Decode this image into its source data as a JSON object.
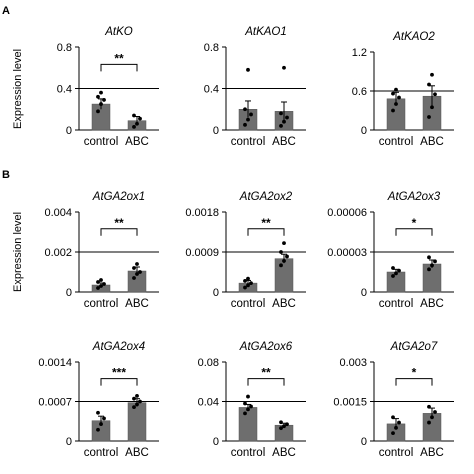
{
  "panel_labels": [
    "A",
    "B"
  ],
  "ylabel": "Expression level",
  "chart_data": [
    {
      "type": "bar",
      "title": "AtKO",
      "categories": [
        "control",
        "ABC"
      ],
      "values": [
        0.25,
        0.09
      ],
      "errors": [
        0.05,
        0.04
      ],
      "points": [
        [
          0.18,
          0.25,
          0.29,
          0.32,
          0.36
        ],
        [
          0.03,
          0.06,
          0.11,
          0.14
        ]
      ],
      "ylim": [
        0,
        0.8
      ],
      "yticks": [
        "0",
        "0.4",
        "0.8"
      ],
      "yticks_v": [
        0,
        0.4,
        0.8
      ],
      "refline": 0.4,
      "significance": "**"
    },
    {
      "type": "bar",
      "title": "AtKAO1",
      "categories": [
        "control",
        "ABC"
      ],
      "values": [
        0.2,
        0.18
      ],
      "errors": [
        0.08,
        0.09
      ],
      "points": [
        [
          0.05,
          0.1,
          0.15,
          0.2,
          0.58
        ],
        [
          0.04,
          0.08,
          0.12,
          0.16,
          0.6
        ]
      ],
      "ylim": [
        0,
        0.8
      ],
      "yticks": [
        "0",
        "0.4",
        "0.8"
      ],
      "yticks_v": [
        0,
        0.4,
        0.8
      ],
      "refline": 0.4,
      "significance": ""
    },
    {
      "type": "bar",
      "title": "AtKAO2",
      "categories": [
        "control",
        "ABC"
      ],
      "values": [
        0.48,
        0.52
      ],
      "errors": [
        0.1,
        0.16
      ],
      "points": [
        [
          0.3,
          0.4,
          0.5,
          0.56,
          0.62
        ],
        [
          0.2,
          0.35,
          0.55,
          0.7,
          0.85
        ]
      ],
      "ylim": [
        0,
        1.2
      ],
      "yticks": [
        "0",
        "0.6",
        "1.2"
      ],
      "yticks_v": [
        0,
        0.6,
        1.2
      ],
      "refline": 0.6,
      "significance": ""
    },
    {
      "type": "bar",
      "title": "AtGA2ox1",
      "categories": [
        "control",
        "ABC"
      ],
      "values": [
        0.00035,
        0.00105
      ],
      "errors": [
        0.0001,
        0.0002
      ],
      "points": [
        [
          0.0002,
          0.0003,
          0.0004,
          0.0005,
          0.0006
        ],
        [
          0.0007,
          0.0009,
          0.001,
          0.0012,
          0.0014
        ]
      ],
      "ylim": [
        0,
        0.004
      ],
      "yticks": [
        "0",
        "0.002",
        "0.004"
      ],
      "yticks_v": [
        0,
        0.002,
        0.004
      ],
      "refline": 0.002,
      "significance": "**"
    },
    {
      "type": "bar",
      "title": "AtGA2ox2",
      "categories": [
        "control",
        "ABC"
      ],
      "values": [
        0.0002,
        0.00075
      ],
      "errors": [
        6e-05,
        0.0001
      ],
      "points": [
        [
          0.0001,
          0.00015,
          0.0002,
          0.00025,
          0.0003
        ],
        [
          0.0006,
          0.0007,
          0.0008,
          0.0009,
          0.0011
        ]
      ],
      "ylim": [
        0,
        0.0018
      ],
      "yticks": [
        "0",
        "0.0009",
        "0.0018"
      ],
      "yticks_v": [
        0,
        0.0009,
        0.0018
      ],
      "refline": 0.0009,
      "significance": "**"
    },
    {
      "type": "bar",
      "title": "AtGA2ox3",
      "categories": [
        "control",
        "ABC"
      ],
      "values": [
        1.5e-05,
        2.1e-05
      ],
      "errors": [
        2e-06,
        3e-06
      ],
      "points": [
        [
          1.2e-05,
          1.4e-05,
          1.6e-05,
          1.8e-05
        ],
        [
          1.7e-05,
          2e-05,
          2.3e-05,
          2.6e-05
        ]
      ],
      "ylim": [
        0,
        6e-05
      ],
      "yticks": [
        "0",
        "0.00003",
        "0.00006"
      ],
      "yticks_v": [
        0,
        3e-05,
        6e-05
      ],
      "refline": 3e-05,
      "significance": "*"
    },
    {
      "type": "bar",
      "title": "AtGA2ox4",
      "categories": [
        "control",
        "ABC"
      ],
      "values": [
        0.00036,
        0.00068
      ],
      "errors": [
        8e-05,
        7e-05
      ],
      "points": [
        [
          0.0002,
          0.0003,
          0.0004,
          0.0005
        ],
        [
          0.0006,
          0.00065,
          0.0007,
          0.00075,
          0.0008
        ]
      ],
      "ylim": [
        0,
        0.0014
      ],
      "yticks": [
        "0",
        "0.0007",
        "0.0014"
      ],
      "yticks_v": [
        0,
        0.0007,
        0.0014
      ],
      "refline": 0.0007,
      "significance": "***"
    },
    {
      "type": "bar",
      "title": "AtGA2ox6",
      "categories": [
        "control",
        "ABC"
      ],
      "values": [
        0.034,
        0.016
      ],
      "errors": [
        0.003,
        0.002
      ],
      "points": [
        [
          0.028,
          0.032,
          0.035,
          0.038,
          0.045
        ],
        [
          0.013,
          0.015,
          0.017,
          0.019
        ]
      ],
      "ylim": [
        0,
        0.08
      ],
      "yticks": [
        "0",
        "0.04",
        "0.08"
      ],
      "yticks_v": [
        0,
        0.04,
        0.08
      ],
      "refline": 0.04,
      "significance": "**"
    },
    {
      "type": "bar",
      "title": "AtGA2o7",
      "categories": [
        "control",
        "ABC"
      ],
      "values": [
        0.00065,
        0.00105
      ],
      "errors": [
        0.0002,
        0.0002
      ],
      "points": [
        [
          0.0003,
          0.0005,
          0.0007,
          0.0009
        ],
        [
          0.0007,
          0.0009,
          0.0011,
          0.0013
        ]
      ],
      "ylim": [
        0,
        0.003
      ],
      "yticks": [
        "0",
        "0.0015",
        "0.003"
      ],
      "yticks_v": [
        0,
        0.0015,
        0.003
      ],
      "refline": 0.0015,
      "significance": "*"
    }
  ]
}
